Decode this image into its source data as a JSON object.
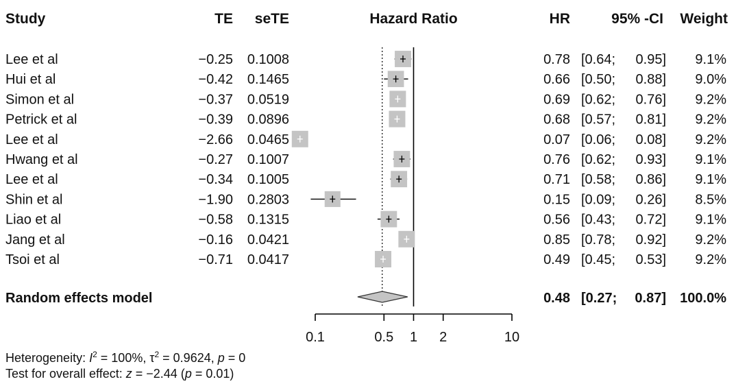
{
  "chart_data": {
    "type": "forest",
    "headers": {
      "study": "Study",
      "te": "TE",
      "sete": "seTE",
      "plot": "Hazard Ratio",
      "hr": "HR",
      "ci": "95% -CI",
      "weight": "Weight"
    },
    "studies": [
      {
        "study": "Lee et al",
        "te": "−0.25",
        "sete": "0.1008",
        "hr": 0.78,
        "lower": 0.64,
        "upper": 0.95,
        "hr_label": "0.78",
        "ci_label": "[0.64; 0.95]",
        "weight": "9.1%",
        "weight_value": 9.1
      },
      {
        "study": "Hui et al",
        "te": "−0.42",
        "sete": "0.1465",
        "hr": 0.66,
        "lower": 0.5,
        "upper": 0.88,
        "hr_label": "0.66",
        "ci_label": "[0.50; 0.88]",
        "weight": "9.0%",
        "weight_value": 9.0
      },
      {
        "study": "Simon et al",
        "te": "−0.37",
        "sete": "0.0519",
        "hr": 0.69,
        "lower": 0.62,
        "upper": 0.76,
        "hr_label": "0.69",
        "ci_label": "[0.62; 0.76]",
        "weight": "9.2%",
        "weight_value": 9.2
      },
      {
        "study": "Petrick et al",
        "te": "−0.39",
        "sete": "0.0896",
        "hr": 0.68,
        "lower": 0.57,
        "upper": 0.81,
        "hr_label": "0.68",
        "ci_label": "[0.57; 0.81]",
        "weight": "9.2%",
        "weight_value": 9.2
      },
      {
        "study": "Lee et al",
        "te": "−2.66",
        "sete": "0.0465",
        "hr": 0.07,
        "lower": 0.06,
        "upper": 0.08,
        "hr_label": "0.07",
        "ci_label": "[0.06; 0.08]",
        "weight": "9.2%",
        "weight_value": 9.2
      },
      {
        "study": "Hwang et al",
        "te": "−0.27",
        "sete": "0.1007",
        "hr": 0.76,
        "lower": 0.62,
        "upper": 0.93,
        "hr_label": "0.76",
        "ci_label": "[0.62; 0.93]",
        "weight": "9.1%",
        "weight_value": 9.1
      },
      {
        "study": "Lee et al",
        "te": "−0.34",
        "sete": "0.1005",
        "hr": 0.71,
        "lower": 0.58,
        "upper": 0.86,
        "hr_label": "0.71",
        "ci_label": "[0.58; 0.86]",
        "weight": "9.1%",
        "weight_value": 9.1
      },
      {
        "study": "Shin et al",
        "te": "−1.90",
        "sete": "0.2803",
        "hr": 0.15,
        "lower": 0.09,
        "upper": 0.26,
        "hr_label": "0.15",
        "ci_label": "[0.09; 0.26]",
        "weight": "8.5%",
        "weight_value": 8.5
      },
      {
        "study": "Liao et al",
        "te": "−0.58",
        "sete": "0.1315",
        "hr": 0.56,
        "lower": 0.43,
        "upper": 0.72,
        "hr_label": "0.56",
        "ci_label": "[0.43; 0.72]",
        "weight": "9.1%",
        "weight_value": 9.1
      },
      {
        "study": "Jang et al",
        "te": "−0.16",
        "sete": "0.0421",
        "hr": 0.85,
        "lower": 0.78,
        "upper": 0.92,
        "hr_label": "0.85",
        "ci_label": "[0.78; 0.92]",
        "weight": "9.2%",
        "weight_value": 9.2
      },
      {
        "study": "Tsoi et al",
        "te": "−0.71",
        "sete": "0.0417",
        "hr": 0.49,
        "lower": 0.45,
        "upper": 0.53,
        "hr_label": "0.49",
        "ci_label": "[0.45; 0.53]",
        "weight": "9.2%",
        "weight_value": 9.2
      }
    ],
    "summary": {
      "label": "Random effects model",
      "hr": 0.48,
      "lower": 0.27,
      "upper": 0.87,
      "hr_label": "0.48",
      "ci_label": "[0.27; 0.87]",
      "weight": "100.0%"
    },
    "x_axis": {
      "scale": "log",
      "range": [
        0.1,
        10
      ],
      "ticks": [
        0.1,
        0.5,
        1,
        2,
        10
      ],
      "tick_labels": [
        "0.1",
        "0.5",
        "1",
        "2",
        "10"
      ],
      "reference_line": 1,
      "summary_line": 0.48
    },
    "colors": {
      "box": "#c4c4c4",
      "ci_line": "#000000",
      "diamond_fill": "#c4c4c4",
      "diamond_stroke": "#333333",
      "text": "#111111"
    },
    "footer": {
      "heterogeneity_label": "Heterogeneity: ",
      "i2_symbol": "I",
      "i2_exp": "2",
      "i2_value": " = 100%, ",
      "tau2_symbol": "τ",
      "tau2_exp": "2",
      "tau2_value": " = 0.9624, ",
      "p_symbol": "p",
      "p_value": " = 0",
      "overall_label": "Test for overall effect: ",
      "z_symbol": "z",
      "z_value": " = −2.44 (",
      "p2_symbol": "p",
      "p2_value": " = 0.01)"
    }
  }
}
